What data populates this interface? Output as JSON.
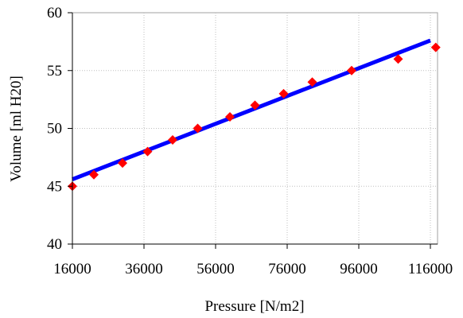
{
  "chart_data": {
    "type": "scatter",
    "title": "",
    "xlabel": "Pressure [N/m2]",
    "ylabel": "Volume [ml H20]",
    "xlim": [
      16000,
      118000
    ],
    "ylim": [
      40,
      60
    ],
    "x_ticks": [
      16000,
      36000,
      56000,
      76000,
      96000,
      116000
    ],
    "x_tick_labels": [
      "16000",
      "36000",
      "56000",
      "76000",
      "96000",
      "116000"
    ],
    "y_ticks": [
      40,
      45,
      50,
      55,
      60
    ],
    "y_tick_labels": [
      "40",
      "45",
      "50",
      "55",
      "60"
    ],
    "grid": true,
    "legend": "none",
    "series": [
      {
        "kind": "points",
        "marker": "diamond",
        "color": "#ff0000",
        "points": [
          {
            "x": 16000,
            "y": 45
          },
          {
            "x": 22000,
            "y": 46
          },
          {
            "x": 30000,
            "y": 47
          },
          {
            "x": 37000,
            "y": 48
          },
          {
            "x": 44000,
            "y": 49
          },
          {
            "x": 51000,
            "y": 50
          },
          {
            "x": 60000,
            "y": 51
          },
          {
            "x": 67000,
            "y": 52
          },
          {
            "x": 75000,
            "y": 53
          },
          {
            "x": 83000,
            "y": 54
          },
          {
            "x": 94000,
            "y": 55
          },
          {
            "x": 107000,
            "y": 56
          },
          {
            "x": 117500,
            "y": 57
          }
        ]
      },
      {
        "kind": "trendline",
        "color": "#0000ff",
        "points": [
          {
            "x": 16000,
            "y": 45.6
          },
          {
            "x": 116000,
            "y": 57.6
          }
        ]
      }
    ]
  }
}
